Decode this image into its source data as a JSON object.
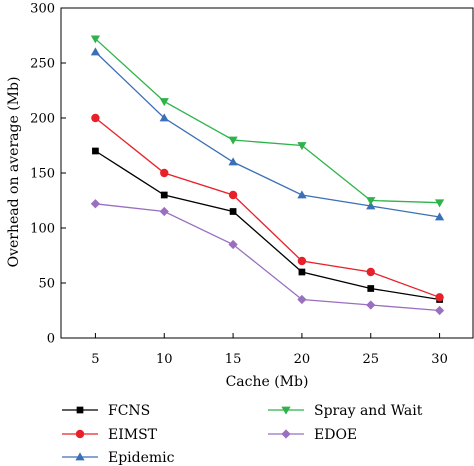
{
  "chart_data": {
    "type": "line",
    "title": "",
    "xlabel": "Cache (Mb)",
    "ylabel": "Overhead on average (Mb)",
    "x": [
      5,
      10,
      15,
      20,
      25,
      30
    ],
    "xlim": [
      2.5,
      32.5
    ],
    "ylim": [
      0,
      300
    ],
    "xticks": [
      "5",
      "10",
      "15",
      "20",
      "25",
      "30"
    ],
    "yticks": [
      "0",
      "50",
      "100",
      "150",
      "200",
      "250",
      "300"
    ],
    "grid": false,
    "legend_placement": "bottom",
    "series": [
      {
        "name": "FCNS",
        "color": "#000000",
        "marker": "square",
        "values": [
          170,
          130,
          115,
          60,
          45,
          35
        ]
      },
      {
        "name": "EIMST",
        "color": "#e8202a",
        "marker": "circle",
        "values": [
          200,
          150,
          130,
          70,
          60,
          37
        ]
      },
      {
        "name": "Epidemic",
        "color": "#3b6fb6",
        "marker": "triangle-up",
        "values": [
          260,
          200,
          160,
          130,
          120,
          110
        ]
      },
      {
        "name": "Spray and Wait",
        "color": "#2db34a",
        "marker": "triangle-down",
        "values": [
          272,
          215,
          180,
          175,
          125,
          123
        ]
      },
      {
        "name": "EDOE",
        "color": "#9b6fc0",
        "marker": "diamond",
        "values": [
          122,
          115,
          85,
          35,
          30,
          25
        ]
      }
    ]
  }
}
